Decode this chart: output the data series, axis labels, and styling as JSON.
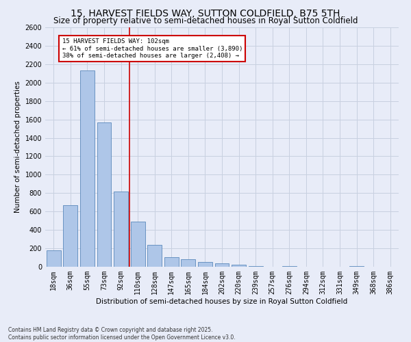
{
  "title": "15, HARVEST FIELDS WAY, SUTTON COLDFIELD, B75 5TH",
  "subtitle": "Size of property relative to semi-detached houses in Royal Sutton Coldfield",
  "xlabel": "Distribution of semi-detached houses by size in Royal Sutton Coldfield",
  "ylabel": "Number of semi-detached properties",
  "categories": [
    "18sqm",
    "36sqm",
    "55sqm",
    "73sqm",
    "92sqm",
    "110sqm",
    "128sqm",
    "147sqm",
    "165sqm",
    "184sqm",
    "202sqm",
    "220sqm",
    "239sqm",
    "257sqm",
    "276sqm",
    "294sqm",
    "312sqm",
    "331sqm",
    "349sqm",
    "368sqm",
    "386sqm"
  ],
  "values": [
    175,
    670,
    2130,
    1565,
    820,
    490,
    240,
    105,
    85,
    55,
    35,
    20,
    10,
    0,
    5,
    0,
    0,
    0,
    10,
    0,
    0
  ],
  "bar_color": "#aec6e8",
  "bar_edge_color": "#5a88bb",
  "vline_color": "#cc0000",
  "annotation_box_color": "#cc0000",
  "property_label": "15 HARVEST FIELDS WAY: 102sqm",
  "pct_smaller": 61,
  "count_smaller": 3890,
  "pct_larger": 38,
  "count_larger": 2408,
  "ylim": [
    0,
    2600
  ],
  "yticks": [
    0,
    200,
    400,
    600,
    800,
    1000,
    1200,
    1400,
    1600,
    1800,
    2000,
    2200,
    2400,
    2600
  ],
  "grid_color": "#c8d0e0",
  "background_color": "#e8ecf8",
  "footer_line1": "Contains HM Land Registry data © Crown copyright and database right 2025.",
  "footer_line2": "Contains public sector information licensed under the Open Government Licence v3.0.",
  "title_fontsize": 10,
  "subtitle_fontsize": 8.5,
  "tick_fontsize": 7,
  "ylabel_fontsize": 7.5,
  "xlabel_fontsize": 7.5,
  "footer_fontsize": 5.5
}
